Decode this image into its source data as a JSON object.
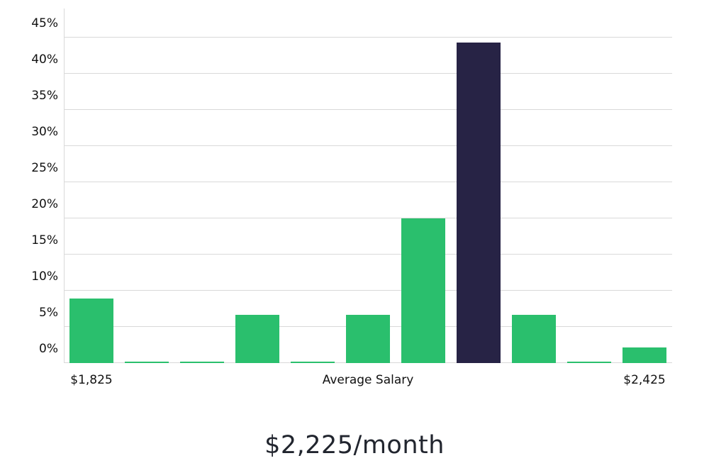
{
  "chart_data": {
    "type": "bar",
    "values": [
      8.9,
      0.2,
      0.2,
      6.7,
      0.2,
      6.7,
      20.0,
      44.3,
      6.7,
      0.2,
      2.2
    ],
    "highlight_index": 7,
    "bar_color": "#2abf6d",
    "highlight_color": "#272345",
    "y_ticks": [
      0,
      5,
      10,
      15,
      20,
      25,
      30,
      35,
      40,
      45
    ],
    "y_tick_suffix": "%",
    "ylim": [
      0,
      49
    ],
    "grid": true,
    "x_labels": [
      {
        "text": "$1,825",
        "slot": 0
      },
      {
        "text": "Average Salary",
        "slot": 5
      },
      {
        "text": "$2,425",
        "slot": 10
      }
    ],
    "title": "$2,225/month"
  }
}
